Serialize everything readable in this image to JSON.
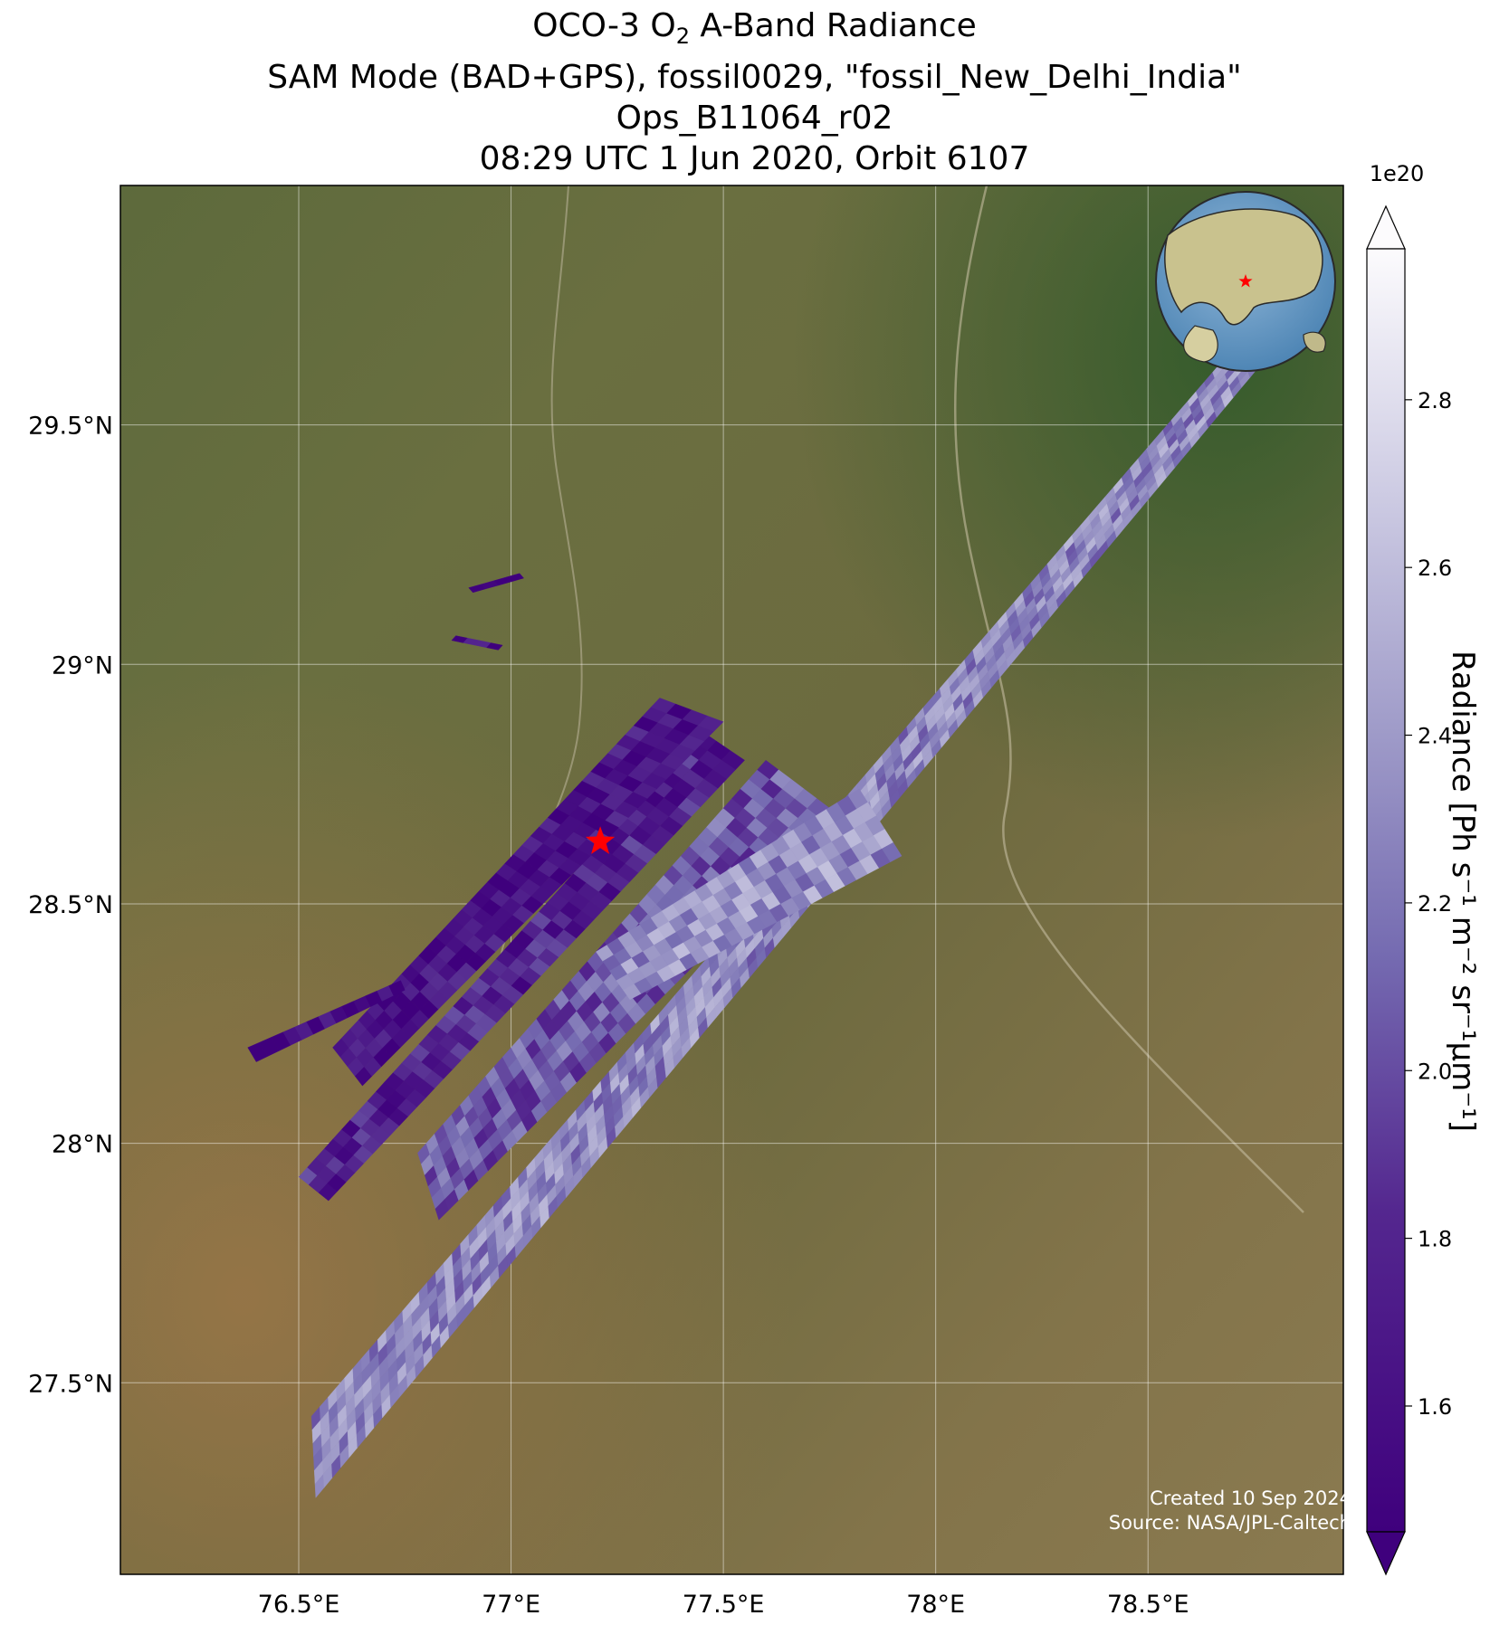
{
  "title": {
    "line1_prefix": "OCO-3 O",
    "line1_sub": "2",
    "line1_suffix": " A-Band Radiance",
    "line2": "SAM Mode (BAD+GPS), fossil0029, \"fossil_New_Delhi_India\"",
    "line3": "Ops_B11064_r02",
    "line4": "08:29 UTC 1 Jun 2020, Orbit 6107"
  },
  "map": {
    "lon_range": [
      76.08,
      78.96
    ],
    "lat_range": [
      27.1,
      30.0
    ],
    "lon_ticks": [
      {
        "value": 76.5,
        "label": "76.5°E"
      },
      {
        "value": 77.0,
        "label": "77°E"
      },
      {
        "value": 77.5,
        "label": "77.5°E"
      },
      {
        "value": 78.0,
        "label": "78°E"
      },
      {
        "value": 78.5,
        "label": "78.5°E"
      }
    ],
    "lat_ticks": [
      {
        "value": 29.5,
        "label": "29.5°N"
      },
      {
        "value": 29.0,
        "label": "29°N"
      },
      {
        "value": 28.5,
        "label": "28.5°N"
      },
      {
        "value": 28.0,
        "label": "28°N"
      },
      {
        "value": 27.5,
        "label": "27.5°N"
      }
    ],
    "gridlines": true,
    "background": "satellite imagery",
    "target": {
      "name": "fossil_New_Delhi_India",
      "lon": 77.21,
      "lat": 28.63,
      "marker": "red-star"
    },
    "inset_globe": {
      "position": "top-right",
      "marker": "red-star"
    }
  },
  "chart_data": {
    "type": "heatmap",
    "variable": "O2 A-Band Radiance",
    "units_exponent": "1e20",
    "value_range": [
      1.45,
      2.98
    ],
    "colormap": "Purples_r",
    "swaths": [
      {
        "corners": [
          [
            76.53,
            27.43
          ],
          [
            78.73,
            29.69
          ],
          [
            78.76,
            29.62
          ],
          [
            76.54,
            27.26
          ]
        ],
        "mean": 2.3
      },
      {
        "corners": [
          [
            76.5,
            27.93
          ],
          [
            77.45,
            28.86
          ],
          [
            77.55,
            28.8
          ],
          [
            76.57,
            27.88
          ]
        ],
        "mean": 1.75
      },
      {
        "corners": [
          [
            76.78,
            27.98
          ],
          [
            77.6,
            28.8
          ],
          [
            77.78,
            28.68
          ],
          [
            76.83,
            27.84
          ]
        ],
        "mean": 2.05
      },
      {
        "corners": [
          [
            76.58,
            28.2
          ],
          [
            77.35,
            28.93
          ],
          [
            77.5,
            28.88
          ],
          [
            76.65,
            28.12
          ]
        ],
        "mean": 1.6
      },
      {
        "corners": [
          [
            77.2,
            28.4
          ],
          [
            77.82,
            28.74
          ],
          [
            77.92,
            28.6
          ],
          [
            77.28,
            28.3
          ]
        ],
        "mean": 2.35
      },
      {
        "corners": [
          [
            76.38,
            28.2
          ],
          [
            76.74,
            28.34
          ],
          [
            76.75,
            28.32
          ],
          [
            76.4,
            28.17
          ]
        ],
        "mean": 1.55
      },
      {
        "corners": [
          [
            76.9,
            29.16
          ],
          [
            77.02,
            29.19
          ],
          [
            77.03,
            29.18
          ],
          [
            76.91,
            29.15
          ]
        ],
        "mean": 1.55
      },
      {
        "corners": [
          [
            76.87,
            29.06
          ],
          [
            76.98,
            29.04
          ],
          [
            76.97,
            29.03
          ],
          [
            76.86,
            29.05
          ]
        ],
        "mean": 1.55
      }
    ]
  },
  "colorbar": {
    "label_main": "Radiance [Ph s",
    "label_full": "Radiance [Ph s⁻¹ m⁻² sr⁻¹μm⁻¹]",
    "exponent_label": "1e20",
    "ticks": [
      {
        "value": 1.6,
        "label": "1.6"
      },
      {
        "value": 1.8,
        "label": "1.8"
      },
      {
        "value": 2.0,
        "label": "2.0"
      },
      {
        "value": 2.2,
        "label": "2.2"
      },
      {
        "value": 2.4,
        "label": "2.4"
      },
      {
        "value": 2.6,
        "label": "2.6"
      },
      {
        "value": 2.8,
        "label": "2.8"
      }
    ],
    "extend": "both"
  },
  "credits": {
    "created": "Created 10 Sep 2024",
    "source": "Source: NASA/JPL-Caltech"
  }
}
